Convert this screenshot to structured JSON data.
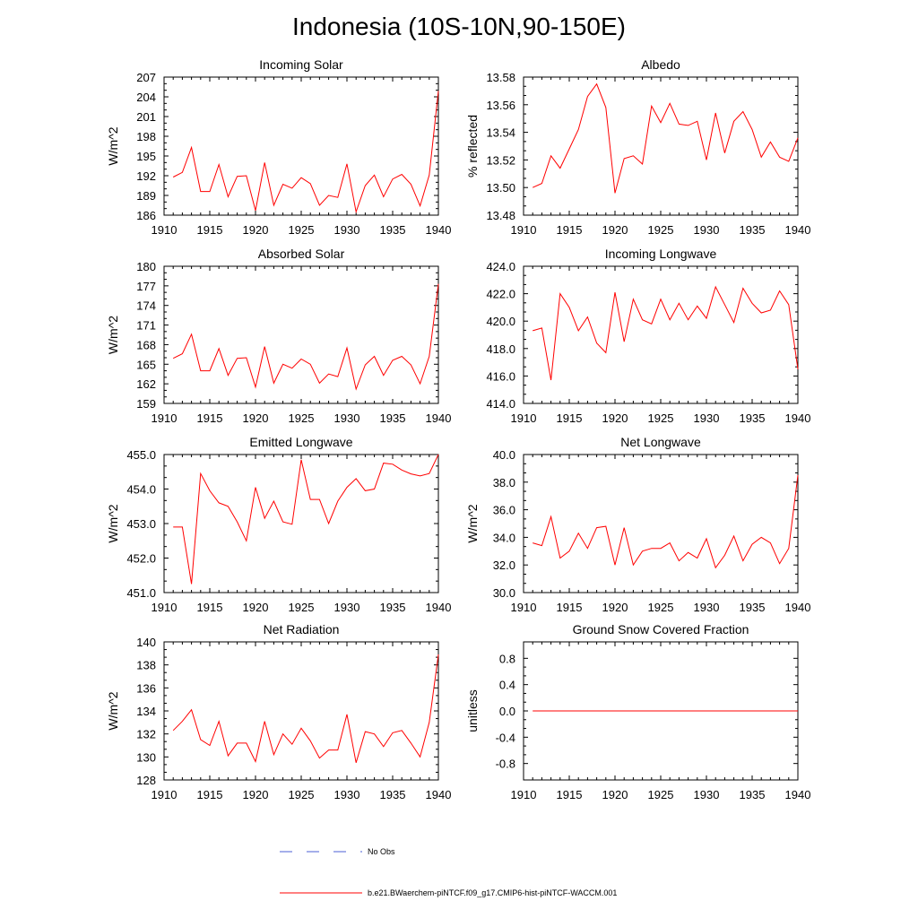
{
  "title": "Indonesia (10S-10N,90-150E)",
  "legend": {
    "entries": [
      {
        "label": "No Obs",
        "color": "#4b5fd6",
        "style": "dashed"
      },
      {
        "label": "b.e21.BWaerchem-piNTCF.f09_g17.CMIP6-hist-piNTCF-WACCM.001",
        "color": "#ff0000",
        "style": "solid"
      }
    ]
  },
  "chart_data": [
    {
      "type": "line",
      "title": "Incoming Solar",
      "ylabel": "W/m^2",
      "xlim": [
        1910,
        1940
      ],
      "ylim": [
        186,
        207
      ],
      "xticks": [
        "1910",
        "1915",
        "1920",
        "1925",
        "1930",
        "1935",
        "1940"
      ],
      "yticks": [
        "186",
        "189",
        "192",
        "195",
        "198",
        "201",
        "204",
        "207"
      ],
      "series": [
        {
          "color": "#ff0000",
          "x": [
            1911,
            1912,
            1913,
            1914,
            1915,
            1916,
            1917,
            1918,
            1919,
            1920,
            1921,
            1922,
            1923,
            1924,
            1925,
            1926,
            1927,
            1928,
            1929,
            1930,
            1931,
            1932,
            1933,
            1934,
            1935,
            1936,
            1937,
            1938,
            1939,
            1940
          ],
          "values": [
            191.8,
            192.5,
            196.3,
            189.6,
            189.6,
            193.7,
            188.8,
            191.9,
            192.0,
            186.7,
            194.0,
            187.5,
            190.7,
            190.1,
            191.7,
            190.8,
            187.5,
            189.0,
            188.7,
            193.8,
            186.5,
            190.5,
            192.1,
            188.8,
            191.5,
            192.2,
            190.7,
            187.4,
            192.1,
            204.9
          ]
        }
      ]
    },
    {
      "type": "line",
      "title": "Albedo",
      "ylabel": "% reflected",
      "xlim": [
        1910,
        1940
      ],
      "ylim": [
        13.48,
        13.58
      ],
      "xticks": [
        "1910",
        "1915",
        "1920",
        "1925",
        "1930",
        "1935",
        "1940"
      ],
      "yticks": [
        "13.48",
        "13.50",
        "13.52",
        "13.54",
        "13.56",
        "13.58"
      ],
      "series": [
        {
          "color": "#ff0000",
          "x": [
            1911,
            1912,
            1913,
            1914,
            1915,
            1916,
            1917,
            1918,
            1919,
            1920,
            1921,
            1922,
            1923,
            1924,
            1925,
            1926,
            1927,
            1928,
            1929,
            1930,
            1931,
            1932,
            1933,
            1934,
            1935,
            1936,
            1937,
            1938,
            1939,
            1940
          ],
          "values": [
            13.5,
            13.503,
            13.523,
            13.514,
            13.528,
            13.542,
            13.566,
            13.575,
            13.558,
            13.496,
            13.521,
            13.523,
            13.517,
            13.559,
            13.547,
            13.561,
            13.546,
            13.545,
            13.548,
            13.52,
            13.554,
            13.525,
            13.548,
            13.555,
            13.542,
            13.522,
            13.533,
            13.522,
            13.519,
            13.536
          ]
        }
      ]
    },
    {
      "type": "line",
      "title": "Absorbed Solar",
      "ylabel": "W/m^2",
      "xlim": [
        1910,
        1940
      ],
      "ylim": [
        159,
        180
      ],
      "xticks": [
        "1910",
        "1915",
        "1920",
        "1925",
        "1930",
        "1935",
        "1940"
      ],
      "yticks": [
        "159",
        "162",
        "165",
        "168",
        "171",
        "174",
        "177",
        "180"
      ],
      "series": [
        {
          "color": "#ff0000",
          "x": [
            1911,
            1912,
            1913,
            1914,
            1915,
            1916,
            1917,
            1918,
            1919,
            1920,
            1921,
            1922,
            1923,
            1924,
            1925,
            1926,
            1927,
            1928,
            1929,
            1930,
            1931,
            1932,
            1933,
            1934,
            1935,
            1936,
            1937,
            1938,
            1939,
            1940
          ],
          "values": [
            165.9,
            166.6,
            169.6,
            164.0,
            164.0,
            167.4,
            163.3,
            165.9,
            166.0,
            161.5,
            167.7,
            162.1,
            165.0,
            164.4,
            165.8,
            165.0,
            162.1,
            163.5,
            163.1,
            167.5,
            161.2,
            164.9,
            166.2,
            163.3,
            165.6,
            166.2,
            164.9,
            162.0,
            166.2,
            177.3
          ]
        }
      ]
    },
    {
      "type": "line",
      "title": "Incoming Longwave",
      "ylabel": "",
      "xlim": [
        1910,
        1940
      ],
      "ylim": [
        414.0,
        424.0
      ],
      "xticks": [
        "1910",
        "1915",
        "1920",
        "1925",
        "1930",
        "1935",
        "1940"
      ],
      "yticks": [
        "414.0",
        "416.0",
        "418.0",
        "420.0",
        "422.0",
        "424.0"
      ],
      "series": [
        {
          "color": "#ff0000",
          "x": [
            1911,
            1912,
            1913,
            1914,
            1915,
            1916,
            1917,
            1918,
            1919,
            1920,
            1921,
            1922,
            1923,
            1924,
            1925,
            1926,
            1927,
            1928,
            1929,
            1930,
            1931,
            1932,
            1933,
            1934,
            1935,
            1936,
            1937,
            1938,
            1939,
            1940
          ],
          "values": [
            419.3,
            419.5,
            415.7,
            422.0,
            421.0,
            419.3,
            420.3,
            418.4,
            417.7,
            422.1,
            418.5,
            421.6,
            420.1,
            419.8,
            421.6,
            420.1,
            421.3,
            420.1,
            421.1,
            420.2,
            422.5,
            421.2,
            419.9,
            422.4,
            421.3,
            420.6,
            420.8,
            422.2,
            421.2,
            416.5
          ]
        }
      ]
    },
    {
      "type": "line",
      "title": "Emitted Longwave",
      "ylabel": "W/m^2",
      "xlim": [
        1910,
        1940
      ],
      "ylim": [
        451.0,
        455.0
      ],
      "xticks": [
        "1910",
        "1915",
        "1920",
        "1925",
        "1930",
        "1935",
        "1940"
      ],
      "yticks": [
        "451.0",
        "452.0",
        "453.0",
        "454.0",
        "455.0"
      ],
      "series": [
        {
          "color": "#ff0000",
          "x": [
            1911,
            1912,
            1913,
            1914,
            1915,
            1916,
            1917,
            1918,
            1919,
            1920,
            1921,
            1922,
            1923,
            1924,
            1925,
            1926,
            1927,
            1928,
            1929,
            1930,
            1931,
            1932,
            1933,
            1934,
            1935,
            1936,
            1937,
            1938,
            1939,
            1940
          ],
          "values": [
            452.9,
            452.9,
            451.25,
            454.45,
            453.95,
            453.6,
            453.5,
            453.05,
            452.5,
            454.05,
            453.15,
            453.65,
            453.05,
            452.98,
            454.85,
            453.7,
            453.7,
            453.0,
            453.65,
            454.05,
            454.3,
            453.95,
            454.0,
            454.75,
            454.72,
            454.55,
            454.44,
            454.38,
            454.45,
            455.0
          ]
        }
      ]
    },
    {
      "type": "line",
      "title": "Net Longwave",
      "ylabel": "W/m^2",
      "xlim": [
        1910,
        1940
      ],
      "ylim": [
        30.0,
        40.0
      ],
      "xticks": [
        "1910",
        "1915",
        "1920",
        "1925",
        "1930",
        "1935",
        "1940"
      ],
      "yticks": [
        "30.0",
        "32.0",
        "34.0",
        "36.0",
        "38.0",
        "40.0"
      ],
      "series": [
        {
          "color": "#ff0000",
          "x": [
            1911,
            1912,
            1913,
            1914,
            1915,
            1916,
            1917,
            1918,
            1919,
            1920,
            1921,
            1922,
            1923,
            1924,
            1925,
            1926,
            1927,
            1928,
            1929,
            1930,
            1931,
            1932,
            1933,
            1934,
            1935,
            1936,
            1937,
            1938,
            1939,
            1940
          ],
          "values": [
            33.6,
            33.4,
            35.5,
            32.5,
            33.0,
            34.3,
            33.2,
            34.7,
            34.8,
            32.0,
            34.7,
            32.0,
            33.0,
            33.2,
            33.2,
            33.6,
            32.3,
            32.9,
            32.5,
            33.9,
            31.8,
            32.7,
            34.1,
            32.3,
            33.5,
            34.0,
            33.6,
            32.1,
            33.2,
            38.5
          ]
        }
      ]
    },
    {
      "type": "line",
      "title": "Net Radiation",
      "ylabel": "W/m^2",
      "xlim": [
        1910,
        1940
      ],
      "ylim": [
        128,
        140
      ],
      "xticks": [
        "1910",
        "1915",
        "1920",
        "1925",
        "1930",
        "1935",
        "1940"
      ],
      "yticks": [
        "128",
        "130",
        "132",
        "134",
        "136",
        "138",
        "140"
      ],
      "series": [
        {
          "color": "#ff0000",
          "x": [
            1911,
            1912,
            1913,
            1914,
            1915,
            1916,
            1917,
            1918,
            1919,
            1920,
            1921,
            1922,
            1923,
            1924,
            1925,
            1926,
            1927,
            1928,
            1929,
            1930,
            1931,
            1932,
            1933,
            1934,
            1935,
            1936,
            1937,
            1938,
            1939,
            1940
          ],
          "values": [
            132.3,
            133.1,
            134.1,
            131.5,
            131.0,
            133.1,
            130.1,
            131.2,
            131.2,
            129.6,
            133.1,
            130.2,
            132.0,
            131.1,
            132.5,
            131.4,
            129.9,
            130.6,
            130.6,
            133.7,
            129.5,
            132.2,
            132.0,
            130.9,
            132.1,
            132.3,
            131.2,
            130.0,
            133.0,
            138.9
          ]
        }
      ]
    },
    {
      "type": "line",
      "title": "Ground Snow Covered Fraction",
      "ylabel": "unitless",
      "xlim": [
        1910,
        1940
      ],
      "ylim": [
        -1.05,
        1.05
      ],
      "xticks": [
        "1910",
        "1915",
        "1920",
        "1925",
        "1930",
        "1935",
        "1940"
      ],
      "yticks": [
        "-0.8",
        "-0.4",
        "0.0",
        "0.4",
        "0.8"
      ],
      "ytick_values": [
        -0.8,
        -0.4,
        0.0,
        0.4,
        0.8
      ],
      "series": [
        {
          "color": "#ff0000",
          "x": [
            1911,
            1940
          ],
          "values": [
            0.0,
            0.0
          ]
        }
      ]
    }
  ]
}
